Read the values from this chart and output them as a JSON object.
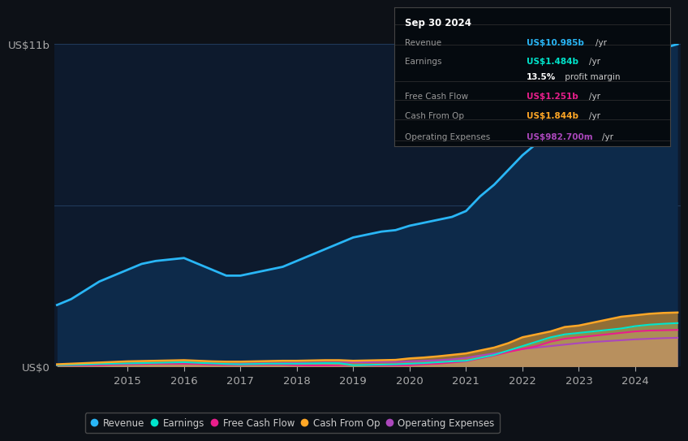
{
  "bg_color": "#0d1117",
  "plot_bg_color": "#0d1a2d",
  "grid_color": "#203a5a",
  "years": [
    2013.75,
    2014.0,
    2014.25,
    2014.5,
    2014.75,
    2015.0,
    2015.25,
    2015.5,
    2015.75,
    2016.0,
    2016.25,
    2016.5,
    2016.75,
    2017.0,
    2017.25,
    2017.5,
    2017.75,
    2018.0,
    2018.25,
    2018.5,
    2018.75,
    2019.0,
    2019.25,
    2019.5,
    2019.75,
    2020.0,
    2020.25,
    2020.5,
    2020.75,
    2021.0,
    2021.25,
    2021.5,
    2021.75,
    2022.0,
    2022.25,
    2022.5,
    2022.75,
    2023.0,
    2023.25,
    2023.5,
    2023.75,
    2024.0,
    2024.25,
    2024.5,
    2024.75
  ],
  "revenue": [
    2.1,
    2.3,
    2.6,
    2.9,
    3.1,
    3.3,
    3.5,
    3.6,
    3.65,
    3.7,
    3.5,
    3.3,
    3.1,
    3.1,
    3.2,
    3.3,
    3.4,
    3.6,
    3.8,
    4.0,
    4.2,
    4.4,
    4.5,
    4.6,
    4.65,
    4.8,
    4.9,
    5.0,
    5.1,
    5.3,
    5.8,
    6.2,
    6.7,
    7.2,
    7.6,
    8.0,
    8.5,
    9.0,
    9.3,
    9.6,
    9.9,
    10.3,
    10.6,
    10.85,
    10.985
  ],
  "cash_from_op": [
    0.08,
    0.1,
    0.12,
    0.14,
    0.16,
    0.18,
    0.19,
    0.2,
    0.21,
    0.22,
    0.2,
    0.18,
    0.17,
    0.17,
    0.18,
    0.19,
    0.2,
    0.2,
    0.21,
    0.22,
    0.22,
    0.2,
    0.21,
    0.22,
    0.23,
    0.28,
    0.31,
    0.35,
    0.4,
    0.45,
    0.55,
    0.65,
    0.8,
    1.0,
    1.1,
    1.2,
    1.35,
    1.4,
    1.5,
    1.6,
    1.7,
    1.75,
    1.8,
    1.83,
    1.844
  ],
  "earnings": [
    0.05,
    0.06,
    0.07,
    0.09,
    0.1,
    0.11,
    0.12,
    0.13,
    0.14,
    0.15,
    0.13,
    0.11,
    0.09,
    0.08,
    0.09,
    0.1,
    0.1,
    0.1,
    0.11,
    0.12,
    0.12,
    0.05,
    0.06,
    0.07,
    0.08,
    0.1,
    0.12,
    0.15,
    0.18,
    0.2,
    0.3,
    0.4,
    0.55,
    0.7,
    0.85,
    1.0,
    1.1,
    1.15,
    1.2,
    1.25,
    1.3,
    1.38,
    1.43,
    1.46,
    1.484
  ],
  "free_cash_flow": [
    0.02,
    0.03,
    0.04,
    0.05,
    0.07,
    0.08,
    0.09,
    0.1,
    0.1,
    0.1,
    0.09,
    0.07,
    0.06,
    0.06,
    0.07,
    0.07,
    0.07,
    0.05,
    0.04,
    0.04,
    0.03,
    -0.02,
    0.0,
    0.02,
    0.04,
    0.05,
    0.08,
    0.1,
    0.14,
    0.18,
    0.28,
    0.38,
    0.5,
    0.6,
    0.7,
    0.85,
    0.95,
    1.0,
    1.05,
    1.1,
    1.15,
    1.2,
    1.23,
    1.24,
    1.251
  ],
  "op_expenses": [
    0.05,
    0.06,
    0.07,
    0.08,
    0.09,
    0.1,
    0.11,
    0.12,
    0.12,
    0.13,
    0.12,
    0.11,
    0.1,
    0.1,
    0.11,
    0.11,
    0.12,
    0.13,
    0.13,
    0.14,
    0.14,
    0.15,
    0.15,
    0.16,
    0.16,
    0.18,
    0.2,
    0.22,
    0.25,
    0.3,
    0.38,
    0.45,
    0.52,
    0.6,
    0.65,
    0.7,
    0.75,
    0.8,
    0.84,
    0.87,
    0.9,
    0.93,
    0.95,
    0.97,
    0.9827
  ],
  "revenue_color": "#29b6f6",
  "earnings_color": "#00e5cc",
  "free_cash_flow_color": "#e91e8c",
  "cash_from_op_color": "#ffa726",
  "op_expenses_color": "#ab47bc",
  "revenue_fill_color": "#0d2a4a",
  "ylim": [
    0,
    11
  ],
  "ytick_labels": [
    "US$0",
    "US$11b"
  ],
  "xtick_years": [
    2015,
    2016,
    2017,
    2018,
    2019,
    2020,
    2021,
    2022,
    2023,
    2024
  ],
  "info_box": {
    "title": "Sep 30 2024",
    "rows": [
      {
        "label": "Revenue",
        "value": "US$10.985b",
        "unit": "/yr",
        "color": "#29b6f6"
      },
      {
        "label": "Earnings",
        "value": "US$1.484b",
        "unit": "/yr",
        "color": "#00e5cc"
      },
      {
        "label": "",
        "value": "13.5%",
        "unit": " profit margin",
        "color": "#ffffff"
      },
      {
        "label": "Free Cash Flow",
        "value": "US$1.251b",
        "unit": "/yr",
        "color": "#e91e8c"
      },
      {
        "label": "Cash From Op",
        "value": "US$1.844b",
        "unit": "/yr",
        "color": "#ffa726"
      },
      {
        "label": "Operating Expenses",
        "value": "US$982.700m",
        "unit": "/yr",
        "color": "#ab47bc"
      }
    ]
  },
  "legend_entries": [
    {
      "label": "Revenue",
      "color": "#29b6f6"
    },
    {
      "label": "Earnings",
      "color": "#00e5cc"
    },
    {
      "label": "Free Cash Flow",
      "color": "#e91e8c"
    },
    {
      "label": "Cash From Op",
      "color": "#ffa726"
    },
    {
      "label": "Operating Expenses",
      "color": "#ab47bc"
    }
  ]
}
